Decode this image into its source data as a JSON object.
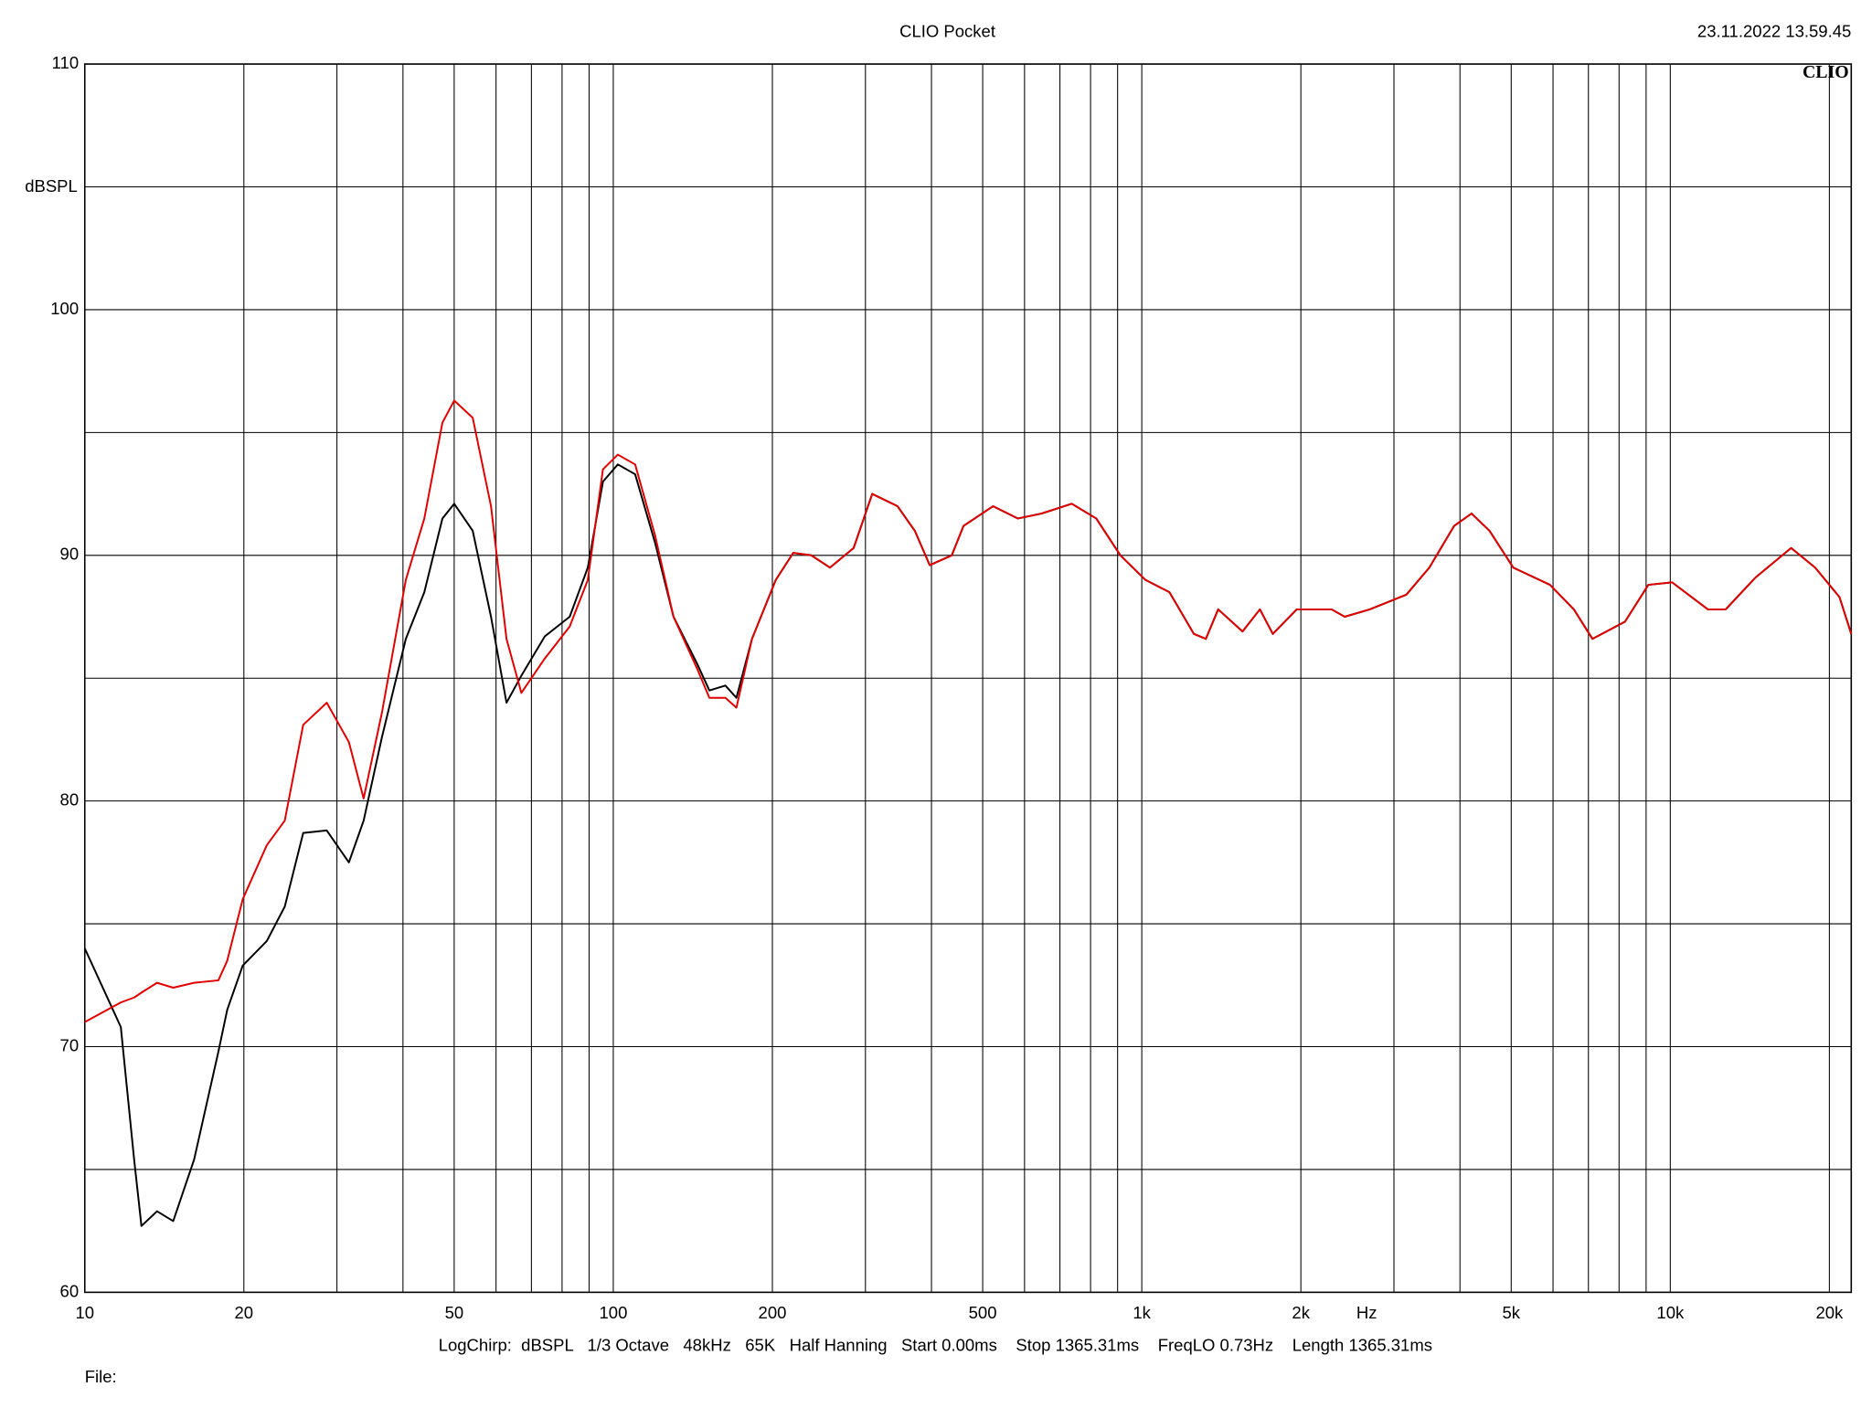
{
  "chart_data": {
    "type": "line",
    "title": "CLIO Pocket",
    "timestamp": "23.11.2022 13.59.45",
    "logo": "CLIO",
    "ylabel": "dBSPL",
    "xlabel": "Hz",
    "footer": "LogChirp:  dBSPL   1/3 Octave   48kHz   65K   Half Hanning   Start 0.00ms    Stop 1365.31ms    FreqLO 0.73Hz    Length 1365.31ms",
    "file_label": "File:",
    "xscale": "log",
    "grid": true,
    "xlim": [
      10,
      22000
    ],
    "ylim": [
      60,
      110
    ],
    "xticks": [
      10,
      20,
      50,
      100,
      200,
      500,
      {
        "value": 1000,
        "label": "1k"
      },
      {
        "value": 2000,
        "label": "2k"
      },
      {
        "value": 5000,
        "label": "5k"
      },
      {
        "value": 10000,
        "label": "10k"
      },
      {
        "value": 20000,
        "label": "20k"
      }
    ],
    "x_gridlines": [
      30,
      40,
      60,
      70,
      80,
      90,
      300,
      400,
      600,
      700,
      800,
      900,
      3000,
      4000,
      6000,
      7000,
      8000,
      9000
    ],
    "yticks": [
      60,
      70,
      80,
      90,
      100,
      110
    ],
    "y_gridlines": [
      65,
      75,
      85,
      95,
      105
    ],
    "x": [
      10,
      11.7,
      12.4,
      12.8,
      13.7,
      14.7,
      16.1,
      17.9,
      18.6,
      19.9,
      22.1,
      23.9,
      25.9,
      28.7,
      31.6,
      33.7,
      36.5,
      40.5,
      43.9,
      47.5,
      50,
      54.2,
      58.7,
      62.8,
      67,
      74.2,
      82.7,
      89.5,
      95.6,
      102,
      110,
      120,
      130,
      144,
      152,
      163,
      171,
      183,
      203,
      219,
      237,
      257,
      285,
      309,
      345,
      372,
      397,
      437,
      460,
      523,
      583,
      646,
      737,
      820,
      911,
      1016,
      1128,
      1255,
      1322,
      1395,
      1551,
      1673,
      1770,
      1964,
      2287,
      2421,
      2700,
      3167,
      3500,
      3900,
      4207,
      4550,
      5046,
      5920,
      6570,
      7123,
      8210,
      9090,
      10080,
      11780,
      12730,
      14500,
      16930,
      18800,
      20900,
      22000
    ],
    "series": [
      {
        "color": "#000000",
        "values": [
          74.0,
          70.8,
          65.4,
          62.7,
          63.3,
          62.9,
          65.4,
          69.8,
          71.5,
          73.3,
          74.3,
          75.7,
          78.7,
          78.8,
          77.5,
          79.2,
          82.6,
          86.6,
          88.5,
          91.5,
          92.1,
          91.0,
          87.5,
          84.0,
          85.1,
          86.7,
          87.5,
          89.5,
          93.0,
          93.7,
          93.3,
          90.5,
          87.5,
          85.6,
          84.5,
          84.7,
          84.2,
          86.6,
          89.0,
          90.1,
          90.0,
          89.5,
          90.3,
          92.5,
          92.0,
          91.0,
          89.6,
          90.0,
          91.2,
          92.0,
          91.5,
          91.7,
          92.1,
          91.5,
          90.0,
          89.0,
          88.5,
          86.8,
          86.6,
          87.8,
          86.9,
          87.8,
          86.8,
          87.8,
          87.8,
          87.5,
          87.8,
          88.4,
          89.5,
          91.2,
          91.7,
          91.0,
          89.5,
          88.8,
          87.8,
          86.6,
          87.3,
          88.8,
          88.9,
          87.8,
          87.8,
          89.1,
          90.3,
          89.5,
          88.3,
          86.8
        ]
      },
      {
        "color": "#e00000",
        "values": [
          71.0,
          71.8,
          72.0,
          72.2,
          72.6,
          72.4,
          72.6,
          72.7,
          73.5,
          76.0,
          78.2,
          79.2,
          83.1,
          84.0,
          82.4,
          80.1,
          83.6,
          89.0,
          91.5,
          95.4,
          96.3,
          95.6,
          92.0,
          86.6,
          84.4,
          85.8,
          87.1,
          89.0,
          93.5,
          94.1,
          93.7,
          90.8,
          87.5,
          85.4,
          84.2,
          84.2,
          83.8,
          86.6,
          89.0,
          90.1,
          90.0,
          89.5,
          90.3,
          92.5,
          92.0,
          91.0,
          89.6,
          90.0,
          91.2,
          92.0,
          91.5,
          91.7,
          92.1,
          91.5,
          90.0,
          89.0,
          88.5,
          86.8,
          86.6,
          87.8,
          86.9,
          87.8,
          86.8,
          87.8,
          87.8,
          87.5,
          87.8,
          88.4,
          89.5,
          91.2,
          91.7,
          91.0,
          89.5,
          88.8,
          87.8,
          86.6,
          87.3,
          88.8,
          88.9,
          87.8,
          87.8,
          89.1,
          90.3,
          89.5,
          88.3,
          86.8
        ]
      }
    ]
  }
}
